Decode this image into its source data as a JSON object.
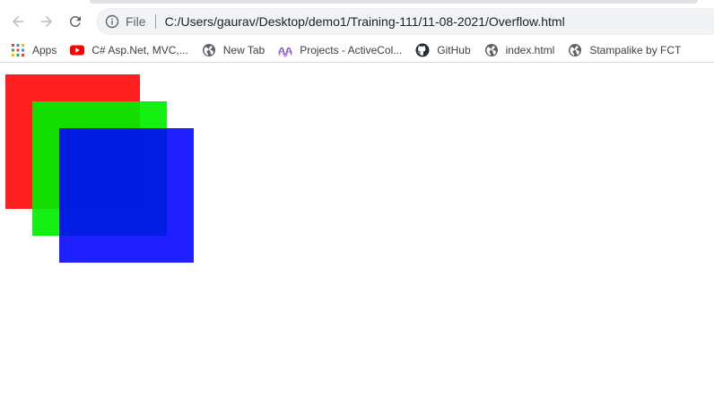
{
  "toolbar": {
    "scheme_label": "File",
    "url": "C:/Users/gaurav/Desktop/demo1/Training-111/11-08-2021/Overflow.html"
  },
  "bookmarks": [
    {
      "label": "Apps",
      "icon": "apps-grid-icon"
    },
    {
      "label": "C# Asp.Net, MVC,...",
      "icon": "youtube-icon"
    },
    {
      "label": "New Tab",
      "icon": "globe-icon"
    },
    {
      "label": "Projects - ActiveCol...",
      "icon": "activecollab-icon"
    },
    {
      "label": "GitHub",
      "icon": "github-icon"
    },
    {
      "label": "index.html",
      "icon": "globe-icon"
    },
    {
      "label": "Stampalike by FCT",
      "icon": "globe-icon"
    }
  ],
  "colors": {
    "red_box": "#ff1a1a",
    "green_box": "#12ee12",
    "blue_box": "#1a1aff"
  }
}
